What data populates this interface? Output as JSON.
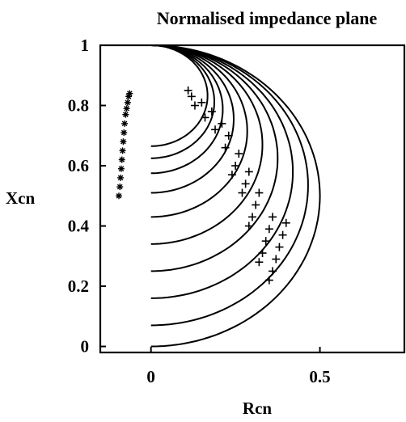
{
  "chart_data": {
    "type": "line",
    "title": "Normalised impedance plane",
    "xlabel": "Rcn",
    "ylabel": "Xcn",
    "xlim": [
      -0.15,
      0.75
    ],
    "ylim": [
      -0.02,
      1.0
    ],
    "x_ticks": [
      0,
      0.5
    ],
    "x_tick_labels": [
      "0",
      "0.5"
    ],
    "y_ticks": [
      0,
      0.2,
      0.4,
      0.6,
      0.8,
      1.0
    ],
    "y_tick_labels": [
      "0",
      "0.2",
      "0.4",
      "0.6",
      "0.8",
      "1"
    ],
    "grid": false,
    "curve_start_xcn": [
      0,
      0.07,
      0.16,
      0.25,
      0.34,
      0.43,
      0.51,
      0.575,
      0.625,
      0.665
    ],
    "curve_end": [
      0.0,
      1.0
    ],
    "markers_plus": [
      [
        0.4,
        0.41
      ],
      [
        0.39,
        0.37
      ],
      [
        0.38,
        0.33
      ],
      [
        0.37,
        0.29
      ],
      [
        0.36,
        0.25
      ],
      [
        0.35,
        0.22
      ],
      [
        0.36,
        0.43
      ],
      [
        0.35,
        0.39
      ],
      [
        0.34,
        0.35
      ],
      [
        0.33,
        0.31
      ],
      [
        0.32,
        0.28
      ],
      [
        0.32,
        0.51
      ],
      [
        0.31,
        0.47
      ],
      [
        0.3,
        0.43
      ],
      [
        0.29,
        0.4
      ],
      [
        0.29,
        0.58
      ],
      [
        0.28,
        0.54
      ],
      [
        0.27,
        0.51
      ],
      [
        0.26,
        0.64
      ],
      [
        0.25,
        0.6
      ],
      [
        0.24,
        0.57
      ],
      [
        0.23,
        0.7
      ],
      [
        0.22,
        0.66
      ],
      [
        0.21,
        0.74
      ],
      [
        0.19,
        0.72
      ],
      [
        0.18,
        0.78
      ],
      [
        0.16,
        0.76
      ],
      [
        0.15,
        0.81
      ],
      [
        0.13,
        0.8
      ],
      [
        0.12,
        0.83
      ],
      [
        0.11,
        0.85
      ]
    ],
    "markers_star": [
      [
        -0.095,
        0.5
      ],
      [
        -0.092,
        0.53
      ],
      [
        -0.09,
        0.56
      ],
      [
        -0.088,
        0.59
      ],
      [
        -0.086,
        0.62
      ],
      [
        -0.084,
        0.65
      ],
      [
        -0.082,
        0.68
      ],
      [
        -0.08,
        0.71
      ],
      [
        -0.078,
        0.74
      ],
      [
        -0.075,
        0.77
      ],
      [
        -0.072,
        0.79
      ],
      [
        -0.069,
        0.81
      ],
      [
        -0.066,
        0.83
      ],
      [
        -0.063,
        0.84
      ]
    ]
  }
}
